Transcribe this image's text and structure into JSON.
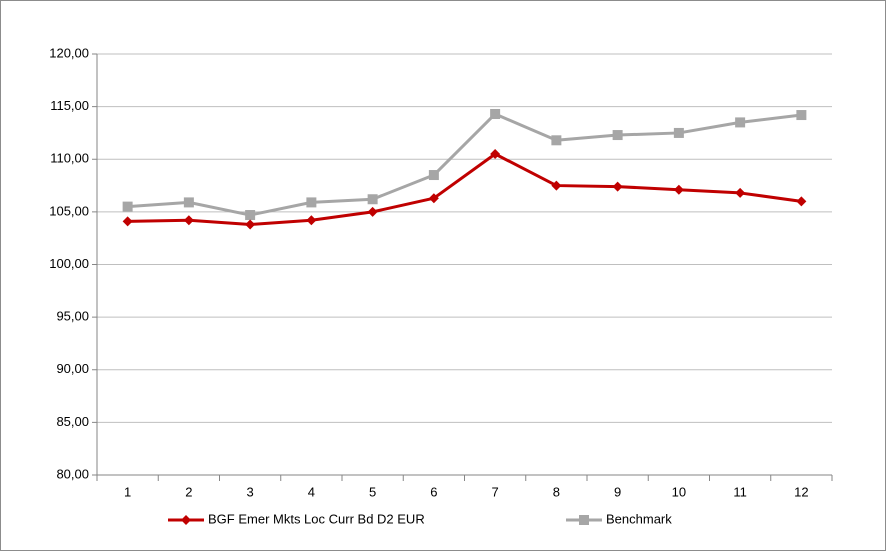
{
  "chart_data": {
    "type": "line",
    "categories": [
      "1",
      "2",
      "3",
      "4",
      "5",
      "6",
      "7",
      "8",
      "9",
      "10",
      "11",
      "12"
    ],
    "series": [
      {
        "name": "BGF Emer Mkts Loc Curr Bd D2 EUR",
        "color": "#c00000",
        "marker": "diamond",
        "values": [
          104.1,
          104.2,
          103.8,
          104.2,
          105.0,
          106.3,
          110.5,
          107.5,
          107.4,
          107.1,
          106.8,
          106.0
        ]
      },
      {
        "name": "Benchmark",
        "color": "#a6a6a6",
        "marker": "square",
        "values": [
          105.5,
          105.9,
          104.7,
          105.9,
          106.2,
          108.5,
          114.3,
          111.8,
          112.3,
          112.5,
          113.5,
          114.2
        ]
      }
    ],
    "ylim": [
      80,
      120
    ],
    "yticks": [
      {
        "value": 80,
        "label": "80,00"
      },
      {
        "value": 85,
        "label": "85,00"
      },
      {
        "value": 90,
        "label": "90,00"
      },
      {
        "value": 95,
        "label": "95,00"
      },
      {
        "value": 100,
        "label": "100,00"
      },
      {
        "value": 105,
        "label": "105,00"
      },
      {
        "value": 110,
        "label": "110,00"
      },
      {
        "value": 115,
        "label": "115,00"
      },
      {
        "value": 120,
        "label": "120,00"
      }
    ],
    "grid": true,
    "legend": "bottom"
  }
}
